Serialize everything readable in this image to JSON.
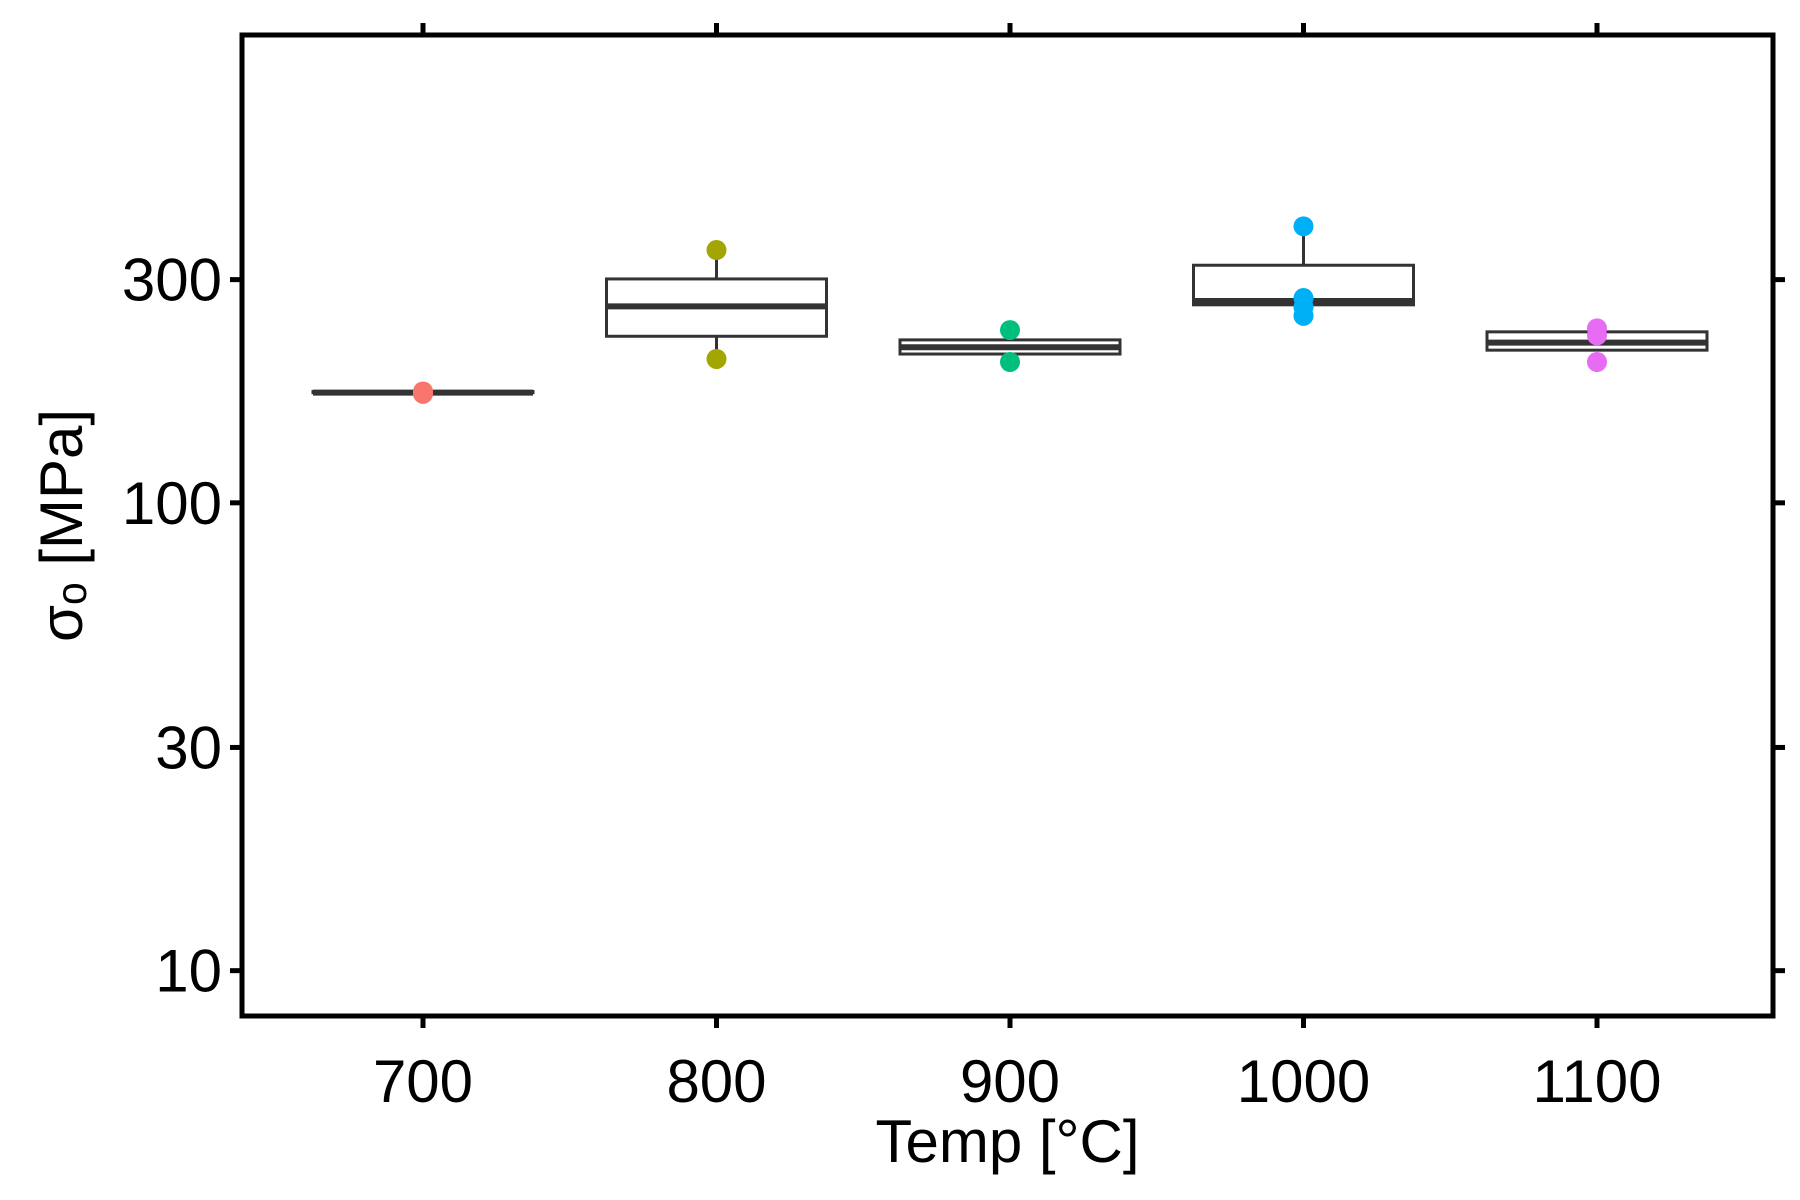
{
  "chart_data": {
    "type": "box",
    "xlabel": "Temp [°C]",
    "ylabel": "σₒ [MPa]",
    "yscale": "log",
    "ylim": [
      8,
      1000
    ],
    "yticks": [
      10,
      30,
      100,
      300
    ],
    "ytick_labels": [
      "10",
      "30",
      "100",
      "300"
    ],
    "categories": [
      "700",
      "800",
      "900",
      "1000",
      "1100"
    ],
    "grid": false,
    "legend": "none",
    "boxes": [
      {
        "category": "700",
        "color": "#F8766D",
        "q1": 172,
        "median": 172,
        "q3": 173,
        "whisker_low": 172,
        "whisker_high": 173,
        "points": [
          171,
          172,
          173
        ]
      },
      {
        "category": "800",
        "color": "#A3A500",
        "q1": 227,
        "median": 263,
        "q3": 301,
        "whisker_low": 203,
        "whisker_high": 347,
        "points": [
          203,
          347
        ]
      },
      {
        "category": "900",
        "color": "#00BF7D",
        "q1": 208,
        "median": 215,
        "q3": 223,
        "whisker_low": 208,
        "whisker_high": 223,
        "points": [
          200,
          234
        ]
      },
      {
        "category": "1000",
        "color": "#00B0F6",
        "q1": 265,
        "median": 270,
        "q3": 322,
        "whisker_low": 265,
        "whisker_high": 390,
        "points": [
          251,
          262,
          274,
          390
        ]
      },
      {
        "category": "1100",
        "color": "#E76BF3",
        "q1": 212,
        "median": 220,
        "q3": 232,
        "whisker_low": 212,
        "whisker_high": 232,
        "points": [
          200,
          228,
          236
        ]
      }
    ]
  }
}
